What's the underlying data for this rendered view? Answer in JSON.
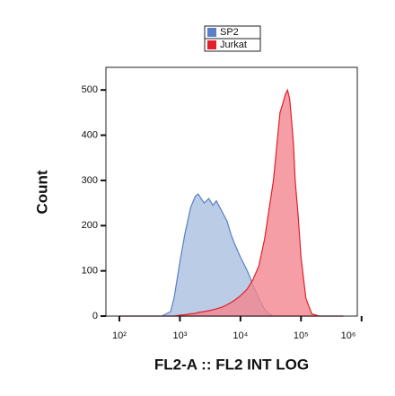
{
  "chart_data": {
    "type": "area",
    "x_label": "FL2-A :: FL2 INT LOG",
    "y_label": "Count",
    "x": [
      100,
      300,
      500,
      700,
      800,
      1000,
      1200,
      1500,
      1800,
      2000,
      2500,
      3000,
      3500,
      4000,
      5000,
      6000,
      7000,
      8000,
      10000,
      13000,
      16000,
      20000,
      25000,
      30000,
      35000,
      40000,
      45000,
      50000,
      55000,
      60000,
      65000,
      70000,
      75000,
      80000,
      90000,
      100000,
      120000,
      150000,
      200000,
      500000
    ],
    "series": [
      {
        "name": "SP2",
        "color": "#5b7fc6",
        "fill": "#a9bfe0",
        "values": [
          0,
          0,
          0,
          10,
          40,
          120,
          180,
          240,
          265,
          270,
          250,
          260,
          245,
          255,
          230,
          210,
          180,
          160,
          130,
          100,
          70,
          40,
          15,
          5,
          0,
          0,
          0,
          0,
          0,
          0,
          0,
          0,
          0,
          0,
          0,
          0,
          0,
          0,
          0,
          0
        ]
      },
      {
        "name": "Jurkat",
        "color": "#e0202a",
        "fill": "#f4868f",
        "values": [
          0,
          0,
          0,
          0,
          0,
          2,
          3,
          5,
          6,
          8,
          10,
          12,
          14,
          16,
          20,
          25,
          30,
          35,
          45,
          60,
          80,
          110,
          170,
          240,
          300,
          380,
          450,
          470,
          490,
          500,
          480,
          430,
          380,
          300,
          220,
          130,
          40,
          5,
          0,
          0
        ]
      }
    ],
    "xlim": [
      60,
      850000
    ],
    "log_x": true,
    "xticks": [
      {
        "value": 100,
        "label": "10²"
      },
      {
        "value": 1000,
        "label": "10³"
      },
      {
        "value": 10000,
        "label": "10⁴"
      },
      {
        "value": 100000,
        "label": "10⁵"
      },
      {
        "value": 1000000,
        "label": "10⁶"
      }
    ],
    "ylim": [
      0,
      550
    ],
    "yticks": [
      0,
      100,
      200,
      300,
      400,
      500
    ],
    "legend": "top"
  }
}
